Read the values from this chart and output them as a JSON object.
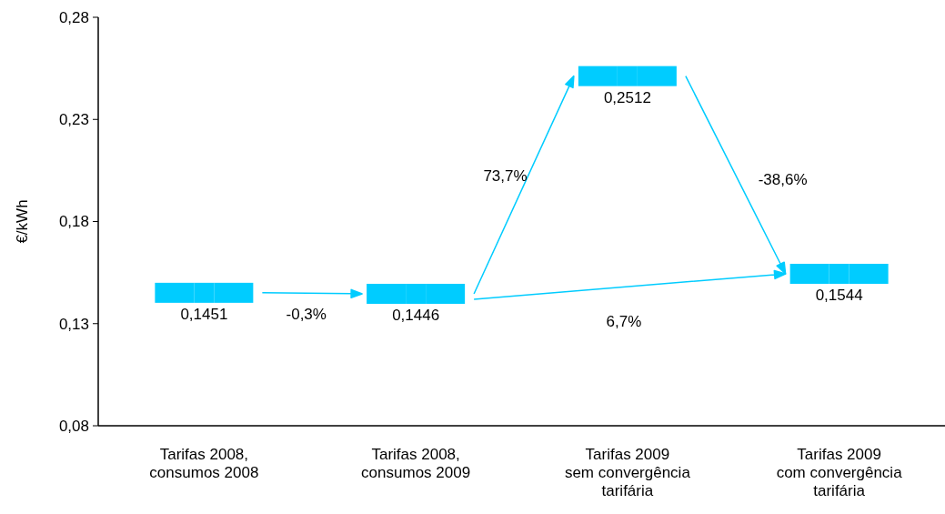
{
  "chart_data": {
    "type": "scatter",
    "marker": "square",
    "ylabel": "€/kWh",
    "categories": [
      "Tarifas 2008,\nconsumos 2008",
      "Tarifas 2008,\nconsumos 2009",
      "Tarifas 2009\nsem convergência\ntarifária",
      "Tarifas 2009\ncom convergência\ntarifária"
    ],
    "series": [
      {
        "color": "#00ccff",
        "values": [
          0.1451,
          0.1446,
          0.2512,
          0.1544
        ],
        "value_labels": [
          "0,1451",
          "0,1446",
          "0,2512",
          "0,1544"
        ]
      }
    ],
    "ylim": [
      0.08,
      0.28
    ],
    "yticks": [
      {
        "value": 0.08,
        "label": "0,08"
      },
      {
        "value": 0.13,
        "label": "0,13"
      },
      {
        "value": 0.18,
        "label": "0,18"
      },
      {
        "value": 0.23,
        "label": "0,23"
      },
      {
        "value": 0.28,
        "label": "0,28"
      }
    ],
    "annotations": [
      "-0,3%",
      "73,7%",
      "-38,6%",
      "6,7%"
    ],
    "grid": false
  }
}
